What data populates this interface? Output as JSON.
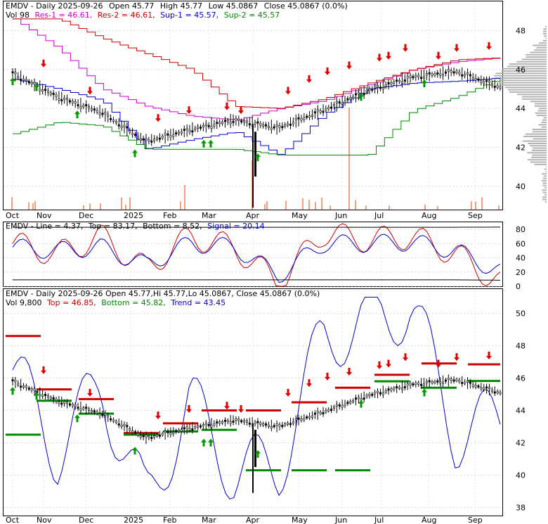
{
  "panel1": {
    "header_line1": {
      "ticker": "EMDV - Daily 2025-09-26",
      "open": "Open 45.77",
      "high": "High 45.77",
      "low": "Low 45.0867",
      "close": "Close 45.0867 (0.0%)"
    },
    "legend": [
      {
        "text": "Vol 98",
        "color": "#000000"
      },
      {
        "text": "Res-1 = 46.61,",
        "color": "#cc00cc"
      },
      {
        "text": "Res-2 = 46.61,",
        "color": "#cc0000"
      },
      {
        "text": "Sup-1 = 45.57,",
        "color": "#0000cc"
      },
      {
        "text": "Sup-2 = 45.57",
        "color": "#008800"
      }
    ],
    "y_ticks": [
      "48",
      "46",
      "44",
      "42",
      "40"
    ]
  },
  "panel2": {
    "legend": [
      {
        "text": "EMDV - Line = 4.37,",
        "color": "#000000",
        "line": "#cc0000"
      },
      {
        "text": "Top = 83.17,",
        "color": "#000000"
      },
      {
        "text": "Bottom = 8.52,",
        "color": "#000000"
      },
      {
        "text": "Signal = 20.14",
        "color": "#0000cc"
      }
    ],
    "y_ticks": [
      "80",
      "60",
      "40",
      "20",
      "0"
    ]
  },
  "panel3": {
    "header_line1": "EMDV - Daily 2025-09-26 Open 45.77,Hi 45.77,Lo 45.0867, Close 45.0867 (0.0%)",
    "legend": [
      {
        "text": "Vol 9,800",
        "color": "#000000"
      },
      {
        "text": "Top = 46.85,",
        "color": "#cc0000"
      },
      {
        "text": "Bottom = 45.82,",
        "color": "#008800"
      },
      {
        "text": "Trend = 43.45",
        "color": "#0000cc"
      }
    ],
    "y_ticks": [
      "50",
      "48",
      "46",
      "44",
      "42",
      "40",
      "38"
    ]
  },
  "x_axis_labels": [
    "Oct",
    "Nov",
    "Dec",
    "2025",
    "Feb",
    "Mar",
    "Apr",
    "May",
    "Jun",
    "Jul",
    "Aug",
    "Sep"
  ],
  "colors": {
    "res1": "#cc00cc",
    "res2": "#cc0000",
    "sup1": "#0000cc",
    "sup2": "#008800",
    "up_arrow": "#009900",
    "down_arrow": "#dd0000",
    "volume": "#f0a080",
    "profile": "#b4b4b4"
  },
  "chart_data": [
    {
      "type": "line",
      "title": "EMDV - Daily 2025-09-26",
      "x": [
        "Oct",
        "Nov",
        "Dec",
        "2025",
        "Feb",
        "Mar",
        "Apr",
        "May",
        "Jun",
        "Jul",
        "Aug",
        "Sep"
      ],
      "ylim": [
        38.8,
        49.5
      ],
      "series": [
        {
          "name": "Close",
          "values": [
            45.8,
            44.6,
            43.8,
            42.3,
            42.9,
            43.4,
            43.0,
            43.9,
            44.9,
            45.6,
            45.9,
            45.09
          ]
        },
        {
          "name": "Res-1",
          "values": [
            48.6,
            47.1,
            45.0,
            44.1,
            43.6,
            43.4,
            44.0,
            44.4,
            45.2,
            46.0,
            46.4,
            46.61
          ]
        },
        {
          "name": "Res-2",
          "values": [
            48.6,
            48.6,
            47.6,
            46.8,
            46.0,
            44.1,
            44.0,
            44.5,
            45.3,
            46.0,
            46.5,
            46.61
          ]
        },
        {
          "name": "Sup-1",
          "values": [
            45.5,
            45.0,
            44.4,
            41.9,
            42.4,
            42.8,
            41.6,
            43.7,
            45.0,
            45.3,
            45.4,
            45.57
          ]
        },
        {
          "name": "Sup-2",
          "values": [
            42.7,
            43.3,
            43.1,
            41.9,
            41.9,
            41.9,
            41.6,
            41.6,
            41.6,
            43.9,
            44.6,
            45.57
          ]
        }
      ]
    },
    {
      "type": "line",
      "title": "EMDV - Line",
      "x": [
        "Oct",
        "Nov",
        "Dec",
        "2025",
        "Feb",
        "Mar",
        "Apr",
        "May",
        "Jun",
        "Jul",
        "Aug",
        "Sep"
      ],
      "ylim": [
        0,
        90
      ],
      "series": [
        {
          "name": "Line",
          "values": [
            60,
            45,
            70,
            25,
            70,
            55,
            5,
            75,
            65,
            70,
            45,
            4.37
          ]
        },
        {
          "name": "Signal",
          "values": [
            55,
            50,
            55,
            30,
            60,
            55,
            15,
            60,
            60,
            62,
            50,
            20.14
          ]
        },
        {
          "name": "Top",
          "values": [
            83,
            83,
            83,
            83,
            83,
            83,
            83,
            83,
            83,
            83,
            83,
            83.17
          ]
        },
        {
          "name": "Bottom",
          "values": [
            9,
            9,
            9,
            9,
            9,
            9,
            9,
            9,
            9,
            9,
            9,
            8.52
          ]
        }
      ]
    },
    {
      "type": "line",
      "title": "EMDV - Daily 2025-09-26",
      "x": [
        "Oct",
        "Nov",
        "Dec",
        "2025",
        "Feb",
        "Mar",
        "Apr",
        "May",
        "Jun",
        "Jul",
        "Aug",
        "Sep"
      ],
      "ylim": [
        37.5,
        51.5
      ],
      "series": [
        {
          "name": "Close",
          "values": [
            45.8,
            44.6,
            43.8,
            42.3,
            42.9,
            43.4,
            43.0,
            43.9,
            44.9,
            45.6,
            45.9,
            45.09
          ]
        },
        {
          "name": "Trend",
          "values": [
            46.5,
            41.5,
            45.5,
            38.2,
            44.5,
            40.2,
            40.5,
            48.5,
            49.5,
            50.5,
            42.5,
            43.45
          ]
        },
        {
          "name": "Top",
          "values": [
            48.6,
            45.3,
            44.7,
            42.6,
            43.2,
            44.0,
            44.0,
            44.5,
            45.4,
            46.2,
            46.9,
            46.85
          ]
        },
        {
          "name": "Bottom",
          "values": [
            42.5,
            44.6,
            43.8,
            42.5,
            42.7,
            42.8,
            40.3,
            40.3,
            40.3,
            45.8,
            45.4,
            45.82
          ]
        }
      ]
    }
  ]
}
